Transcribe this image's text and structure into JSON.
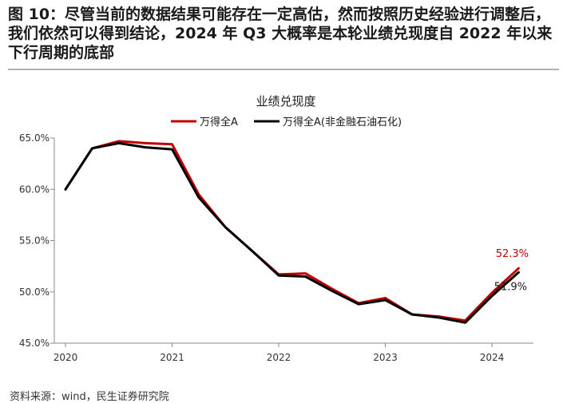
{
  "figure": {
    "title": "图 10：尽管当前的数据结果可能存在一定高估，然而按照历史经验进行调整后，我们依然可以得到结论，2024 年 Q3 大概率是本轮业绩兑现度自 2022 年以来下行周期的底部",
    "source": "资料来源：wind，民生证券研究院"
  },
  "chart_data": {
    "type": "line",
    "title": "业绩兑现度",
    "xlabel": "",
    "ylabel": "",
    "x_ticks": [
      "2020",
      "2021",
      "2022",
      "2023",
      "2024"
    ],
    "y_ticks": [
      "45.0%",
      "50.0%",
      "55.0%",
      "60.0%",
      "65.0%"
    ],
    "ylim": [
      45,
      65
    ],
    "xlim": [
      2020.0,
      2024.5
    ],
    "grid": false,
    "legend_position": "top",
    "x": [
      2020.0,
      2020.25,
      2020.5,
      2020.75,
      2021.0,
      2021.25,
      2021.5,
      2021.75,
      2022.0,
      2022.25,
      2022.5,
      2022.75,
      2023.0,
      2023.25,
      2023.5,
      2023.75,
      2024.0,
      2024.25
    ],
    "series": [
      {
        "name": "万得全A",
        "color": "#c00000",
        "values": [
          60.0,
          64.0,
          64.7,
          64.5,
          64.4,
          59.5,
          56.3,
          54.0,
          51.7,
          51.8,
          50.3,
          48.9,
          49.4,
          47.8,
          47.6,
          47.2,
          49.9,
          52.3
        ]
      },
      {
        "name": "万得全A(非金融石油石化)",
        "color": "#000000",
        "values": [
          60.0,
          64.0,
          64.5,
          64.1,
          63.9,
          59.2,
          56.3,
          54.0,
          51.6,
          51.5,
          50.1,
          48.8,
          49.2,
          47.8,
          47.5,
          47.0,
          49.6,
          51.9
        ]
      }
    ],
    "annotations": [
      {
        "text": "52.3%",
        "series": 0,
        "color": "#c00000"
      },
      {
        "text": "51.9%",
        "series": 1,
        "color": "#1a1a1a"
      }
    ]
  }
}
